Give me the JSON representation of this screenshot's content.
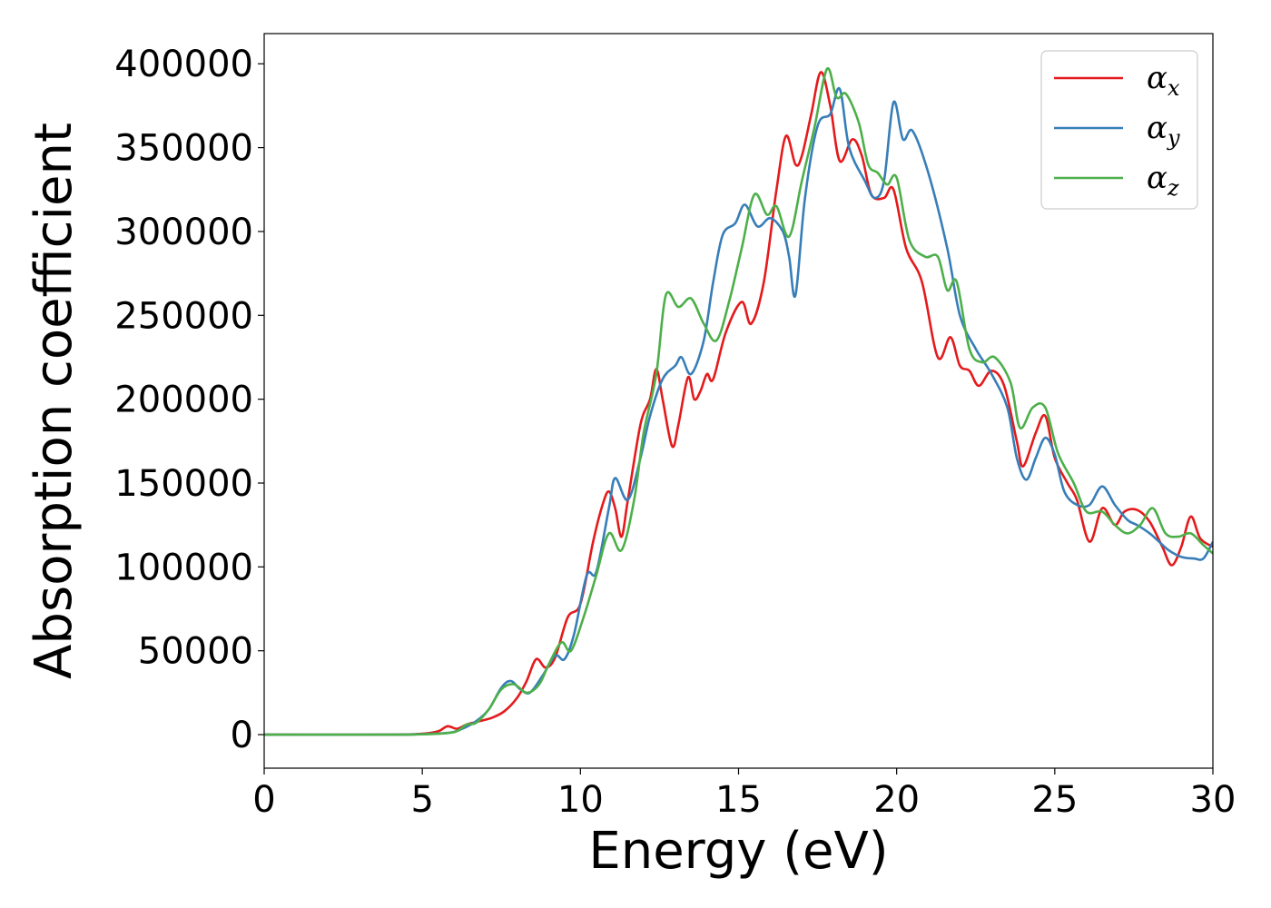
{
  "chart_data": {
    "type": "line",
    "xlabel": "Energy (eV)",
    "ylabel": "Absorption coefficient",
    "xlim": [
      0,
      30
    ],
    "ylim": [
      -20000,
      418000
    ],
    "xticks": [
      0,
      5,
      10,
      15,
      20,
      25,
      30
    ],
    "yticks": [
      0,
      50000,
      100000,
      150000,
      200000,
      250000,
      300000,
      350000,
      400000
    ],
    "grid": false,
    "legend_position": "top-right",
    "series": [
      {
        "name": "α_x",
        "legend_symbol": "α",
        "legend_subscript": "x",
        "color": "#e41a1c",
        "points": [
          [
            0,
            0
          ],
          [
            4,
            0
          ],
          [
            5,
            500
          ],
          [
            5.5,
            2000
          ],
          [
            5.8,
            5000
          ],
          [
            6.1,
            3500
          ],
          [
            6.4,
            6000
          ],
          [
            6.8,
            8000
          ],
          [
            7.2,
            10000
          ],
          [
            7.6,
            14000
          ],
          [
            8.0,
            22000
          ],
          [
            8.3,
            32000
          ],
          [
            8.6,
            45000
          ],
          [
            8.9,
            40000
          ],
          [
            9.2,
            46000
          ],
          [
            9.6,
            70000
          ],
          [
            10.0,
            78000
          ],
          [
            10.4,
            115000
          ],
          [
            10.7,
            137000
          ],
          [
            10.9,
            145000
          ],
          [
            11.1,
            135000
          ],
          [
            11.3,
            118000
          ],
          [
            11.5,
            140000
          ],
          [
            11.9,
            185000
          ],
          [
            12.2,
            200000
          ],
          [
            12.4,
            218000
          ],
          [
            12.6,
            200000
          ],
          [
            12.9,
            172000
          ],
          [
            13.1,
            185000
          ],
          [
            13.4,
            213000
          ],
          [
            13.6,
            200000
          ],
          [
            13.8,
            205000
          ],
          [
            14.0,
            215000
          ],
          [
            14.2,
            212000
          ],
          [
            14.6,
            240000
          ],
          [
            15.1,
            258000
          ],
          [
            15.4,
            245000
          ],
          [
            15.8,
            270000
          ],
          [
            16.2,
            325000
          ],
          [
            16.5,
            357000
          ],
          [
            16.8,
            340000
          ],
          [
            17.0,
            345000
          ],
          [
            17.3,
            370000
          ],
          [
            17.6,
            395000
          ],
          [
            17.9,
            375000
          ],
          [
            18.2,
            342000
          ],
          [
            18.6,
            355000
          ],
          [
            18.9,
            345000
          ],
          [
            19.2,
            322000
          ],
          [
            19.6,
            320000
          ],
          [
            19.9,
            325000
          ],
          [
            20.3,
            290000
          ],
          [
            20.8,
            270000
          ],
          [
            21.3,
            225000
          ],
          [
            21.7,
            237000
          ],
          [
            22.0,
            220000
          ],
          [
            22.3,
            217000
          ],
          [
            22.6,
            208000
          ],
          [
            23.0,
            217000
          ],
          [
            23.4,
            208000
          ],
          [
            23.8,
            175000
          ],
          [
            24.0,
            160000
          ],
          [
            24.4,
            180000
          ],
          [
            24.7,
            190000
          ],
          [
            25.0,
            165000
          ],
          [
            25.4,
            150000
          ],
          [
            25.7,
            140000
          ],
          [
            26.1,
            115000
          ],
          [
            26.5,
            135000
          ],
          [
            26.9,
            125000
          ],
          [
            27.2,
            133000
          ],
          [
            27.6,
            134000
          ],
          [
            28.0,
            127000
          ],
          [
            28.4,
            112000
          ],
          [
            28.7,
            101000
          ],
          [
            29.0,
            112000
          ],
          [
            29.3,
            130000
          ],
          [
            29.6,
            117000
          ],
          [
            30.0,
            112000
          ]
        ]
      },
      {
        "name": "α_y",
        "legend_symbol": "α",
        "legend_subscript": "y",
        "color": "#377eb8",
        "points": [
          [
            0,
            0
          ],
          [
            4,
            0
          ],
          [
            5,
            300
          ],
          [
            5.8,
            1000
          ],
          [
            6.2,
            3000
          ],
          [
            6.7,
            8000
          ],
          [
            7.1,
            15000
          ],
          [
            7.5,
            28000
          ],
          [
            7.8,
            32000
          ],
          [
            8.1,
            27000
          ],
          [
            8.4,
            25000
          ],
          [
            8.8,
            35000
          ],
          [
            9.2,
            47000
          ],
          [
            9.5,
            45000
          ],
          [
            9.8,
            60000
          ],
          [
            10.2,
            95000
          ],
          [
            10.5,
            97000
          ],
          [
            10.9,
            135000
          ],
          [
            11.1,
            153000
          ],
          [
            11.5,
            140000
          ],
          [
            11.9,
            165000
          ],
          [
            12.2,
            190000
          ],
          [
            12.6,
            212000
          ],
          [
            13.0,
            220000
          ],
          [
            13.2,
            225000
          ],
          [
            13.5,
            215000
          ],
          [
            13.9,
            235000
          ],
          [
            14.2,
            270000
          ],
          [
            14.5,
            298000
          ],
          [
            14.9,
            305000
          ],
          [
            15.2,
            316000
          ],
          [
            15.6,
            303000
          ],
          [
            16.0,
            308000
          ],
          [
            16.4,
            300000
          ],
          [
            16.6,
            285000
          ],
          [
            16.8,
            262000
          ],
          [
            17.1,
            320000
          ],
          [
            17.5,
            363000
          ],
          [
            17.9,
            370000
          ],
          [
            18.2,
            385000
          ],
          [
            18.5,
            350000
          ],
          [
            19.0,
            330000
          ],
          [
            19.3,
            320000
          ],
          [
            19.6,
            330000
          ],
          [
            19.9,
            377000
          ],
          [
            20.2,
            355000
          ],
          [
            20.5,
            360000
          ],
          [
            21.0,
            335000
          ],
          [
            21.6,
            290000
          ],
          [
            22.0,
            250000
          ],
          [
            22.5,
            230000
          ],
          [
            23.0,
            215000
          ],
          [
            23.5,
            195000
          ],
          [
            23.8,
            165000
          ],
          [
            24.1,
            152000
          ],
          [
            24.4,
            165000
          ],
          [
            24.7,
            177000
          ],
          [
            25.0,
            167000
          ],
          [
            25.3,
            145000
          ],
          [
            25.7,
            137000
          ],
          [
            26.1,
            137000
          ],
          [
            26.5,
            148000
          ],
          [
            26.9,
            137000
          ],
          [
            27.3,
            128000
          ],
          [
            27.6,
            125000
          ],
          [
            28.0,
            120000
          ],
          [
            28.3,
            115000
          ],
          [
            28.6,
            110000
          ],
          [
            29.0,
            106000
          ],
          [
            29.4,
            105000
          ],
          [
            29.7,
            105000
          ],
          [
            30.0,
            115000
          ]
        ]
      },
      {
        "name": "α_z",
        "legend_symbol": "α",
        "legend_subscript": "z",
        "color": "#4daf4a",
        "points": [
          [
            0,
            0
          ],
          [
            4,
            0
          ],
          [
            5,
            200
          ],
          [
            6.0,
            1500
          ],
          [
            6.4,
            6000
          ],
          [
            6.7,
            7000
          ],
          [
            7.1,
            15000
          ],
          [
            7.5,
            27000
          ],
          [
            7.9,
            30000
          ],
          [
            8.3,
            25000
          ],
          [
            8.7,
            30000
          ],
          [
            9.0,
            42000
          ],
          [
            9.4,
            55000
          ],
          [
            9.7,
            50000
          ],
          [
            10.1,
            70000
          ],
          [
            10.5,
            95000
          ],
          [
            10.9,
            120000
          ],
          [
            11.3,
            110000
          ],
          [
            11.7,
            140000
          ],
          [
            12.0,
            180000
          ],
          [
            12.4,
            215000
          ],
          [
            12.7,
            262000
          ],
          [
            13.1,
            255000
          ],
          [
            13.5,
            260000
          ],
          [
            13.9,
            245000
          ],
          [
            14.3,
            235000
          ],
          [
            14.7,
            258000
          ],
          [
            15.1,
            290000
          ],
          [
            15.5,
            322000
          ],
          [
            15.9,
            310000
          ],
          [
            16.2,
            315000
          ],
          [
            16.6,
            297000
          ],
          [
            17.0,
            330000
          ],
          [
            17.4,
            362000
          ],
          [
            17.8,
            397000
          ],
          [
            18.1,
            380000
          ],
          [
            18.4,
            382000
          ],
          [
            18.8,
            365000
          ],
          [
            19.1,
            340000
          ],
          [
            19.4,
            335000
          ],
          [
            19.7,
            328000
          ],
          [
            20.0,
            332000
          ],
          [
            20.4,
            295000
          ],
          [
            20.9,
            285000
          ],
          [
            21.3,
            285000
          ],
          [
            21.6,
            265000
          ],
          [
            21.9,
            270000
          ],
          [
            22.3,
            230000
          ],
          [
            22.7,
            222000
          ],
          [
            23.1,
            225000
          ],
          [
            23.6,
            210000
          ],
          [
            23.9,
            183000
          ],
          [
            24.3,
            195000
          ],
          [
            24.7,
            195000
          ],
          [
            25.1,
            168000
          ],
          [
            25.6,
            150000
          ],
          [
            26.0,
            133000
          ],
          [
            26.5,
            133000
          ],
          [
            26.9,
            125000
          ],
          [
            27.3,
            120000
          ],
          [
            27.7,
            125000
          ],
          [
            28.1,
            135000
          ],
          [
            28.5,
            120000
          ],
          [
            28.9,
            118000
          ],
          [
            29.3,
            120000
          ],
          [
            29.7,
            113000
          ],
          [
            30.0,
            108000
          ]
        ]
      }
    ]
  }
}
